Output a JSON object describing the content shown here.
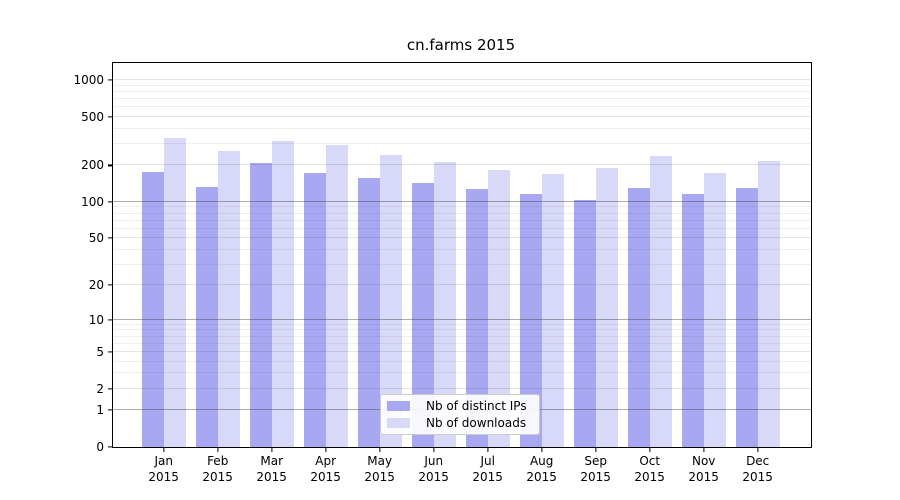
{
  "title": "cn.farms 2015",
  "year": "2015",
  "colors": {
    "distinct_ips": "#a8a8f2",
    "downloads": "#d8d8f8",
    "axis": "#000000",
    "legend_border": "#cccccc"
  },
  "chart_data": {
    "type": "bar",
    "title": "cn.farms 2015",
    "scale": "log1p",
    "categories": [
      "Jan",
      "Feb",
      "Mar",
      "Apr",
      "May",
      "Jun",
      "Jul",
      "Aug",
      "Sep",
      "Oct",
      "Nov",
      "Dec"
    ],
    "category_year": "2015",
    "series": [
      {
        "name": "Nb of distinct IPs",
        "color": "#a8a8f2",
        "values": [
          176,
          133,
          210,
          174,
          157,
          142,
          129,
          116,
          104,
          131,
          117,
          131
        ]
      },
      {
        "name": "Nb of downloads",
        "color": "#d8d8f8",
        "values": [
          338,
          263,
          317,
          294,
          244,
          214,
          184,
          170,
          191,
          240,
          174,
          217
        ]
      }
    ],
    "xlabel": "",
    "ylabel": "",
    "ylim": [
      0,
      1380
    ],
    "y_ticks": [
      0,
      1,
      2,
      5,
      10,
      20,
      50,
      100,
      200,
      500,
      1000
    ],
    "y_minor_ticks": [
      3,
      4,
      6,
      7,
      8,
      9,
      30,
      40,
      60,
      70,
      80,
      90,
      300,
      400,
      600,
      700,
      800,
      900
    ],
    "y_dark_gridlines": [
      1,
      10,
      100
    ],
    "grid": true,
    "legend_position": "bottom-center"
  }
}
